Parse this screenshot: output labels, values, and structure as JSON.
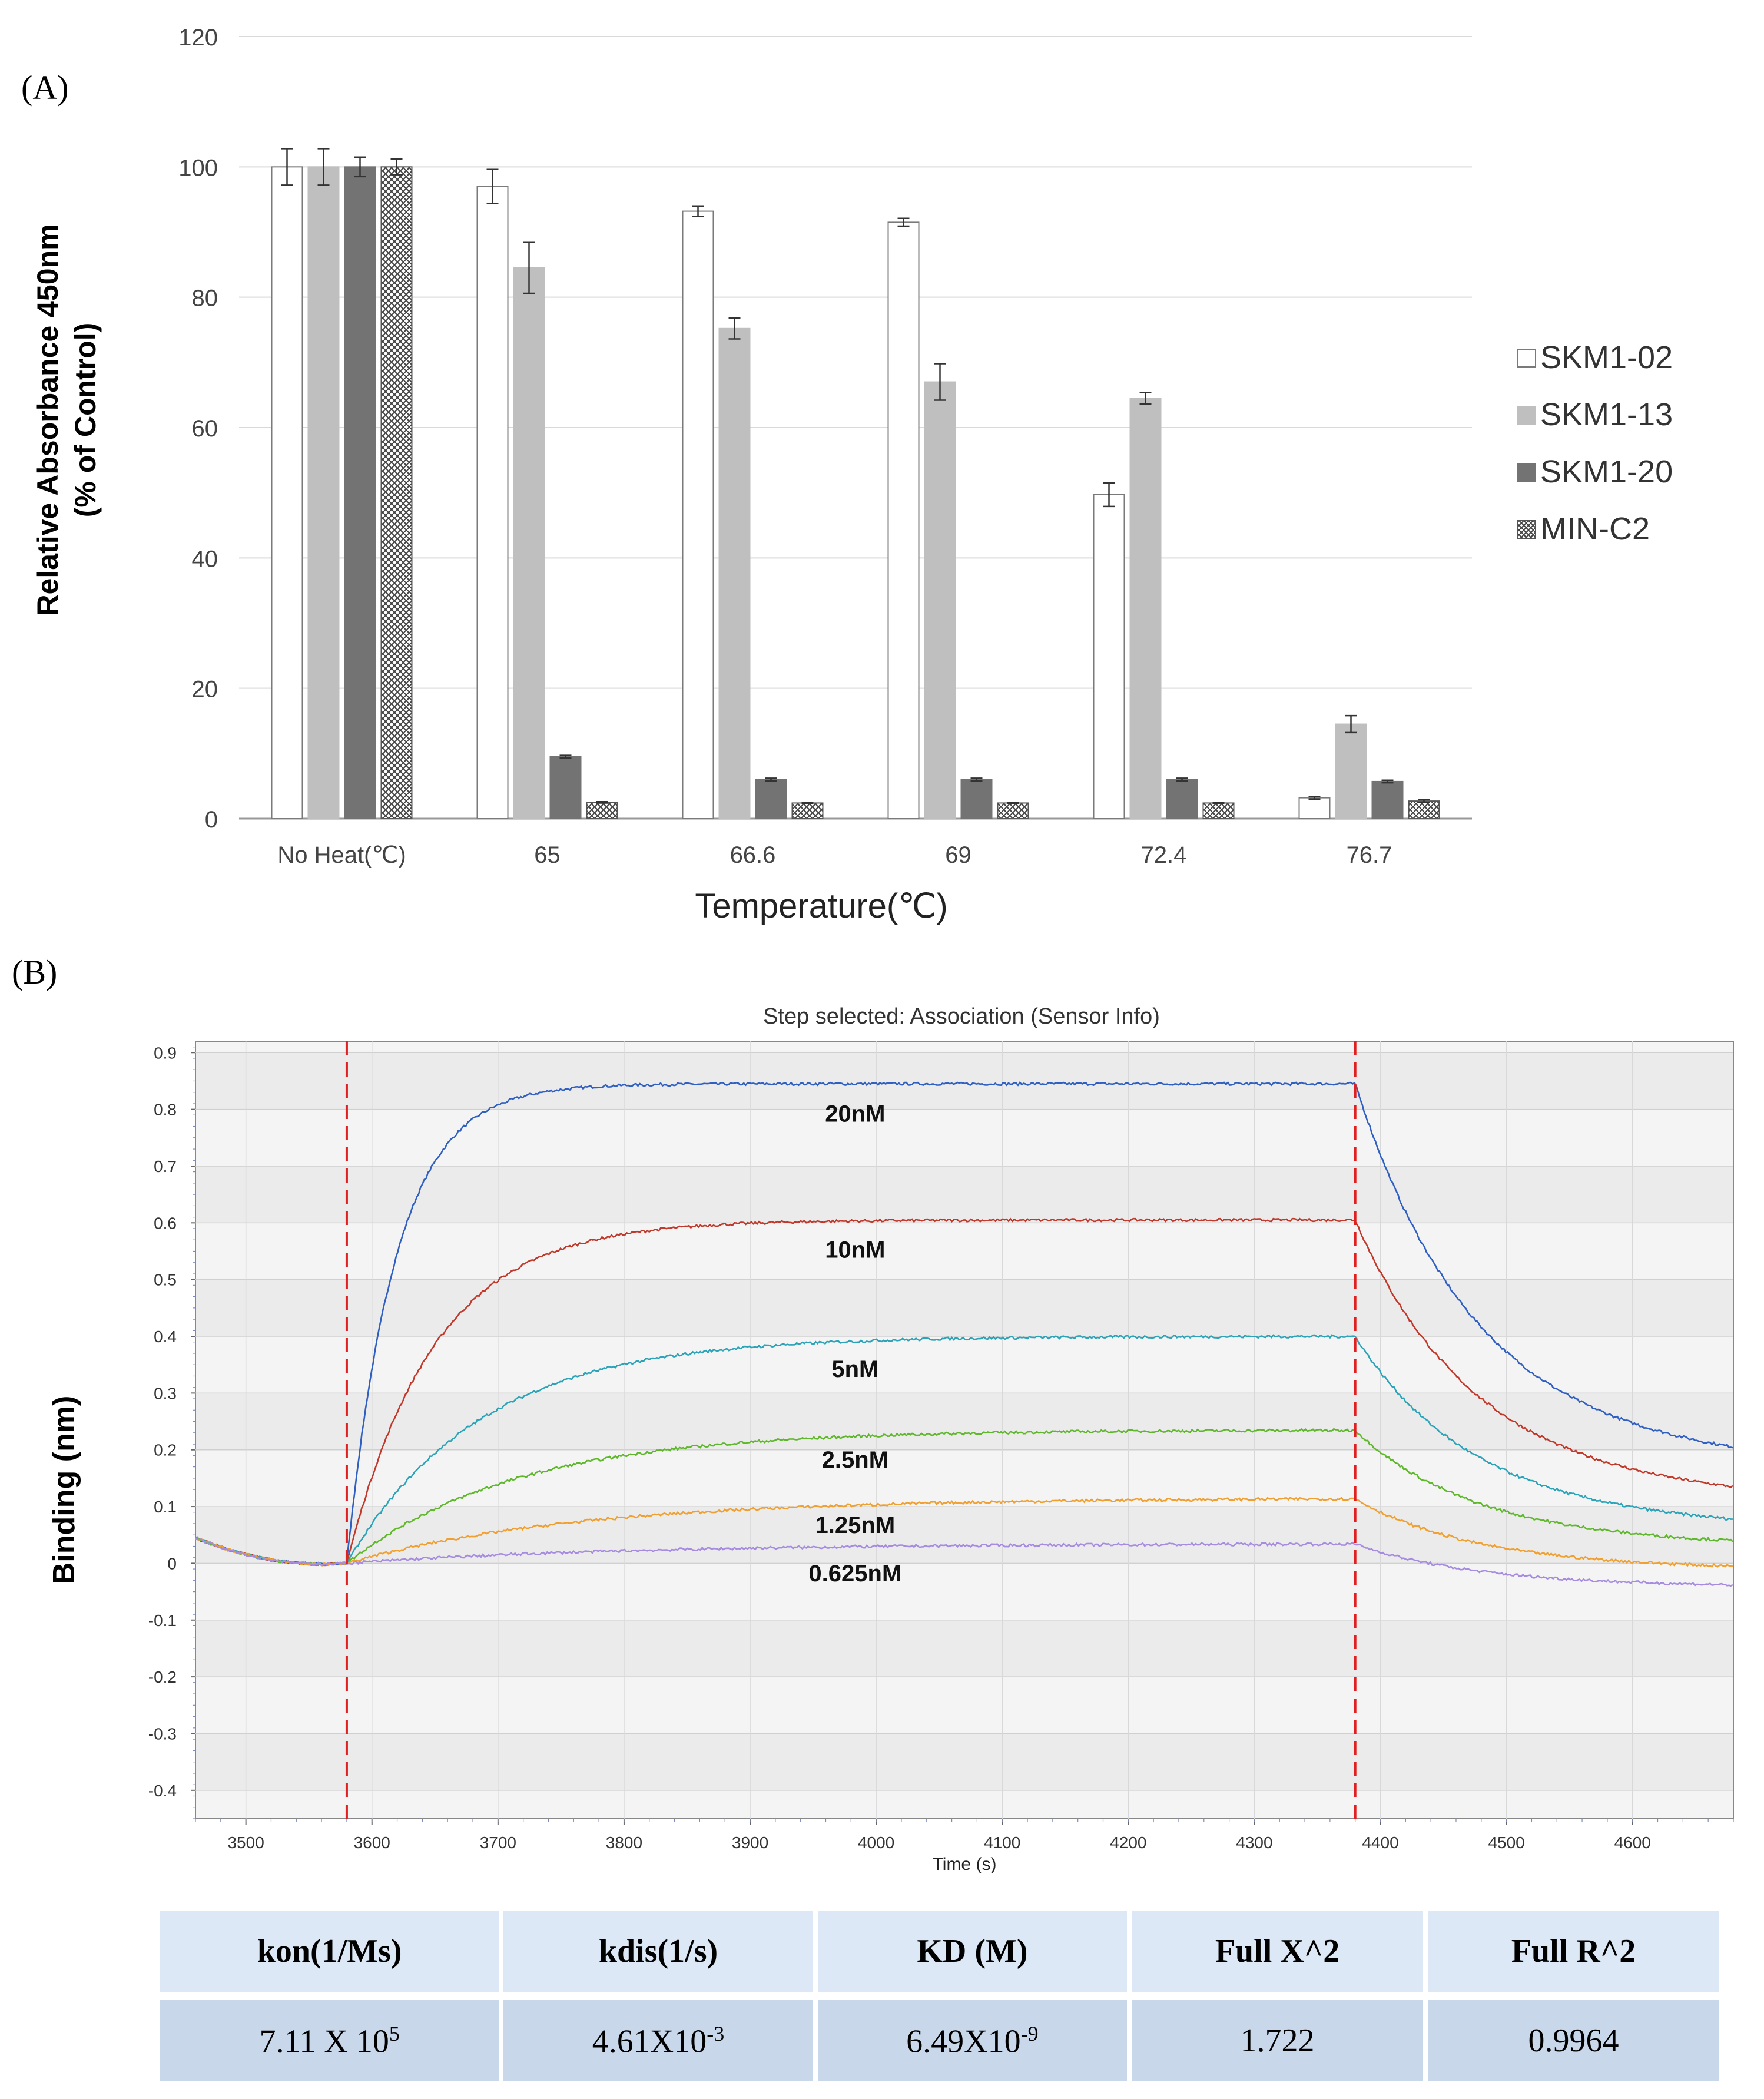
{
  "chart_data": [
    {
      "type": "bar",
      "panel_label": "(A)",
      "xlabel": "Temperature(℃)",
      "ylabel": "Relative Absorbance 450nm",
      "ylabel_line2": "(% of Control)",
      "ylim": [
        0,
        120
      ],
      "yticks": [
        "0",
        "20",
        "40",
        "60",
        "80",
        "100",
        "120"
      ],
      "categories": [
        "No Heat(℃)",
        "65",
        "66.6",
        "69",
        "72.4",
        "76.7"
      ],
      "series": [
        {
          "name": "SKM1-02",
          "style": "white",
          "color": "#ffffff",
          "values": [
            100,
            97,
            93.2,
            91.5,
            49.7,
            3.2
          ],
          "errors": [
            2.8,
            2.6,
            0.8,
            0.6,
            1.8,
            0.2
          ]
        },
        {
          "name": "SKM1-13",
          "style": "light",
          "color": "#bfbfbf",
          "values": [
            100,
            84.5,
            75.2,
            67,
            64.5,
            14.5
          ],
          "errors": [
            2.8,
            3.9,
            1.6,
            2.8,
            0.9,
            1.3
          ]
        },
        {
          "name": "SKM1-20",
          "style": "dark",
          "color": "#737373",
          "values": [
            100,
            9.5,
            6,
            6,
            6,
            5.7
          ],
          "errors": [
            1.5,
            0.2,
            0.2,
            0.2,
            0.2,
            0.2
          ]
        },
        {
          "name": "MIN-C2",
          "style": "hatch",
          "color": "#ffffff",
          "values": [
            100,
            2.5,
            2.4,
            2.4,
            2.4,
            2.7
          ],
          "errors": [
            1.2,
            0.1,
            0.1,
            0.1,
            0.1,
            0.2
          ]
        }
      ]
    },
    {
      "type": "line",
      "panel_label": "(B)",
      "title": "Step selected: Association (Sensor Info)",
      "xlabel": "Time (s)",
      "ylabel": "Binding (nm)",
      "xlim": [
        3460,
        4680
      ],
      "ylim": [
        -0.45,
        0.92
      ],
      "xticks": [
        3500,
        3600,
        3700,
        3800,
        3900,
        4000,
        4100,
        4200,
        4300,
        4400,
        4500,
        4600
      ],
      "yticks": [
        "0.9",
        "0.8",
        "0.7",
        "0.6",
        "0.5",
        "0.4",
        "0.3",
        "0.2",
        "0.1",
        "0",
        "-0.1",
        "-0.2",
        "-0.3",
        "-0.4"
      ],
      "ytick_values": [
        0.9,
        0.8,
        0.7,
        0.6,
        0.5,
        0.4,
        0.3,
        0.2,
        0.1,
        0,
        -0.1,
        -0.2,
        -0.3,
        -0.4
      ],
      "association_start": 3580,
      "dissociation_start": 4380,
      "baseline_start_value": 0.045,
      "series": [
        {
          "name": "20nM",
          "color": "#2f5fc0",
          "plateau": 0.845,
          "kobs": 0.026,
          "end_value": 0.205,
          "label_at": [
            4030,
            0.795
          ]
        },
        {
          "name": "10nM",
          "color": "#c0392b",
          "plateau": 0.605,
          "kobs": 0.0145,
          "end_value": 0.135,
          "label_at": [
            4030,
            0.555
          ]
        },
        {
          "name": "5nM",
          "color": "#2ba3b8",
          "plateau": 0.4,
          "kobs": 0.0095,
          "end_value": 0.078,
          "label_at": [
            4030,
            0.345
          ]
        },
        {
          "name": "2.5nM",
          "color": "#5fb82b",
          "plateau": 0.235,
          "kobs": 0.0075,
          "end_value": 0.04,
          "label_at": [
            4030,
            0.185
          ]
        },
        {
          "name": "1.25nM",
          "color": "#f0a030",
          "plateau": 0.115,
          "kobs": 0.0055,
          "end_value": -0.005,
          "label_at": [
            4030,
            0.07
          ]
        },
        {
          "name": "0.625nM",
          "color": "#a68be0",
          "plateau": 0.035,
          "kobs": 0.0045,
          "end_value": -0.038,
          "label_at": [
            4030,
            -0.015
          ]
        }
      ]
    }
  ],
  "table": {
    "headers": [
      "kon(1/Ms)",
      "kdis(1/s)",
      "KD (M)",
      "Full X^2",
      "Full R^2"
    ],
    "cells": [
      {
        "base": "7.11 X 10",
        "exp": "5"
      },
      {
        "base": "4.61X10",
        "exp": "-3"
      },
      {
        "base": "6.49X10",
        "exp": "-9"
      },
      {
        "base": "1.722",
        "exp": ""
      },
      {
        "base": "0.9964",
        "exp": ""
      }
    ]
  }
}
